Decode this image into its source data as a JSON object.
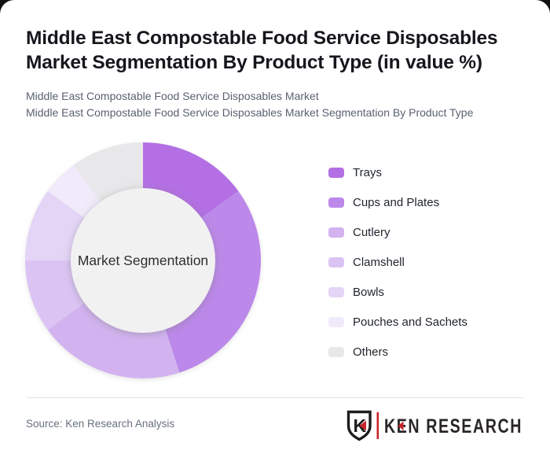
{
  "page": {
    "background": "#111111",
    "card_background": "#ffffff"
  },
  "header": {
    "title": "Middle East Compostable Food Service Disposables Market Segmentation By Product Type (in value %)",
    "subtitle_line1": "Middle East Compostable Food Service Disposables Market",
    "subtitle_line2": "Middle East Compostable Food Service Disposables Market Segmentation By Product Type"
  },
  "chart_data": {
    "type": "pie",
    "variant": "donut",
    "title": "Middle East Compostable Food Service Disposables Market Segmentation By Product Type (in value %)",
    "center_label": "Market Segmentation",
    "categories": [
      "Trays",
      "Cups and Plates",
      "Cutlery",
      "Clamshell",
      "Bowls",
      "Pouches and Sachets",
      "Others"
    ],
    "values": [
      15,
      30,
      20,
      10,
      10,
      5,
      10
    ],
    "unit": "percent of market value",
    "colors": [
      "#b36fe3",
      "#bc88ea",
      "#d2b3f0",
      "#dbc4f4",
      "#e4d5f7",
      "#f1eafb",
      "#e8e7e9"
    ],
    "start_angle_deg": 0,
    "direction": "clockwise",
    "inner_radius_ratio": 0.61,
    "center_fill": "#f2f1f2",
    "center_label_color": "#2e2e2e",
    "legend_position": "right",
    "grid": false
  },
  "footer": {
    "source": "Source: Ken Research Analysis",
    "logo": {
      "shield_letter": "K",
      "brand": "KEN RESEARCH",
      "red": "#c9252c",
      "dark": "#2a2627"
    }
  }
}
